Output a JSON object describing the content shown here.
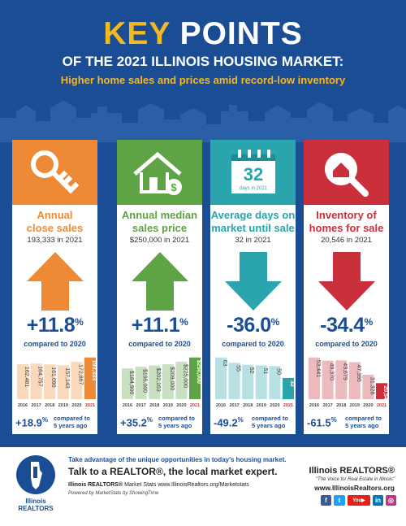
{
  "header": {
    "title_key": "KEY",
    "title_points": "POINTS",
    "subtitle": "OF THE 2021 ILLINOIS HOUSING MARKET:",
    "tagline": "Higher home sales and prices amid record-low inventory"
  },
  "colors": {
    "navy": "#1b4d95",
    "gold": "#f5b820",
    "orange": "#ee8a35",
    "green": "#5ea346",
    "teal": "#2aa4ad",
    "red": "#c9303b"
  },
  "cards": [
    {
      "icon": "key-icon",
      "color": "#ee8a35",
      "title_line1": "Annual",
      "title_line2": "close sales",
      "subtitle": "193,333 in 2021",
      "direction": "up",
      "arrow_color": "#ee8a35",
      "pct": "+11.8",
      "pct_sign": "%",
      "compared": "compared to 2020",
      "bottom_pct": "+18.9",
      "bottom_sign": "%",
      "bottom_note_1": "compared to",
      "bottom_note_2": "5 years ago",
      "years": [
        "2016",
        "2017",
        "2018",
        "2019",
        "2020",
        "2021"
      ],
      "bar_labels": [
        "162,481",
        "164,757",
        "161,090",
        "157,143",
        "172,867",
        "193,333"
      ],
      "values": [
        162481,
        164757,
        161090,
        157143,
        172867,
        193333
      ],
      "ylim": [
        0,
        193333
      ]
    },
    {
      "icon": "house-dollar-icon",
      "color": "#5ea346",
      "title_line1": "Annual median",
      "title_line2": "sales price",
      "subtitle": "$250,000 in 2021",
      "direction": "up",
      "arrow_color": "#5ea346",
      "pct": "+11.1",
      "pct_sign": "%",
      "compared": "compared to 2020",
      "bottom_pct": "+35.2",
      "bottom_sign": "%",
      "bottom_note_1": "compared to",
      "bottom_note_2": "5 years ago",
      "years": [
        "2016",
        "2017",
        "2018",
        "2019",
        "2020",
        "2021"
      ],
      "bar_labels": [
        "$184,900",
        "$195,000",
        "$202,163",
        "$209,000",
        "$225,000",
        "$250,000"
      ],
      "values": [
        184900,
        195000,
        202163,
        209000,
        225000,
        250000
      ],
      "ylim": [
        0,
        250000
      ]
    },
    {
      "icon": "calendar-icon",
      "color": "#2aa4ad",
      "calendar_number": "32",
      "calendar_text": "days in 2021",
      "title_line1": "Average days on",
      "title_line2": "market until sale",
      "subtitle": "32 in 2021",
      "direction": "down",
      "arrow_color": "#2aa4ad",
      "pct": "-36.0",
      "pct_sign": "%",
      "compared": "compared to 2020",
      "bottom_pct": "-49.2",
      "bottom_sign": "%",
      "bottom_note_1": "compared to",
      "bottom_note_2": "5 years ago",
      "years": [
        "2016",
        "2017",
        "2018",
        "2019",
        "2020",
        "2021"
      ],
      "bar_labels": [
        "63",
        "55",
        "52",
        "51",
        "50",
        "32"
      ],
      "values": [
        63,
        55,
        52,
        51,
        50,
        32
      ],
      "ylim": [
        0,
        63
      ]
    },
    {
      "icon": "magnifier-house-icon",
      "color": "#c9303b",
      "title_line1": "Inventory of",
      "title_line2": "homes for sale",
      "subtitle": "20,546 in 2021",
      "direction": "down",
      "arrow_color": "#c9303b",
      "pct": "-34.4",
      "pct_sign": "%",
      "compared": "compared to 2020",
      "bottom_pct": "-61.5",
      "bottom_sign": "%",
      "bottom_note_1": "compared to",
      "bottom_note_2": "5 years ago",
      "years": [
        "2016",
        "2017",
        "2018",
        "2019",
        "2020",
        "2021"
      ],
      "bar_labels": [
        "53,441",
        "49,370",
        "49,679",
        "47,395",
        "31,328",
        "20,546"
      ],
      "values": [
        53441,
        49370,
        49679,
        47395,
        31328,
        20546
      ],
      "ylim": [
        0,
        53441
      ]
    }
  ],
  "footer": {
    "logo_text_1": "Illinois",
    "logo_text_2": "REALTORS",
    "line1": "Take advantage of the unique opportunities in today's housing market.",
    "line2": "Talk to a REALTOR®, the local market expert.",
    "line3_bold": "Illinois REALTORS®",
    "line3_rest": " Market Stats www.IllinoisRealtors.org/Marketstats",
    "line4": "Powered by MarketStats by ShowingTime",
    "org_name": "Illinois REALTORS®",
    "org_tagline": "\"The Voice for Real Estate in Illinois\"",
    "org_url": "www.IllinoisRealtors.org",
    "social": [
      "facebook-icon",
      "twitter-icon",
      "youtube-icon",
      "linkedin-icon",
      "instagram-icon"
    ]
  }
}
